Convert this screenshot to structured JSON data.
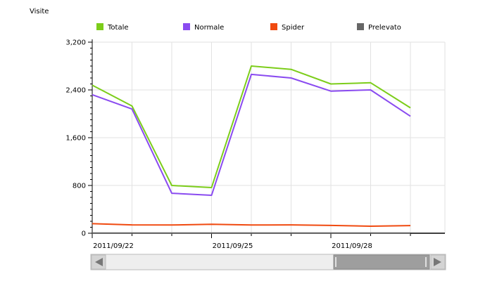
{
  "chart_data": {
    "type": "line",
    "ylabel": "Visite",
    "ylim": [
      0,
      3200
    ],
    "yticks": [
      0,
      800,
      1600,
      2400,
      3200
    ],
    "ytick_labels": [
      "0",
      "800",
      "1,600",
      "2,400",
      "3,200"
    ],
    "xlabels": [
      "2011/09/22",
      "2011/09/25",
      "2011/09/28"
    ],
    "xlabel_index": [
      0,
      3,
      6
    ],
    "x_count": 9,
    "grid": true,
    "legend_position": "top",
    "series": [
      {
        "name": "Totale",
        "color": "#7ccd1a",
        "values": [
          2480,
          2130,
          800,
          765,
          2800,
          2745,
          2500,
          2520,
          2100
        ]
      },
      {
        "name": "Normale",
        "color": "#8a4bf0",
        "values": [
          2320,
          2080,
          670,
          635,
          2660,
          2600,
          2380,
          2400,
          1960
        ]
      },
      {
        "name": "Spider",
        "color": "#f04a10",
        "values": [
          160,
          140,
          138,
          150,
          138,
          140,
          130,
          118,
          128
        ]
      },
      {
        "name": "Prelevato",
        "color": "#666666",
        "values": [
          2,
          2,
          2,
          2,
          2,
          2,
          2,
          2,
          2
        ]
      }
    ]
  }
}
